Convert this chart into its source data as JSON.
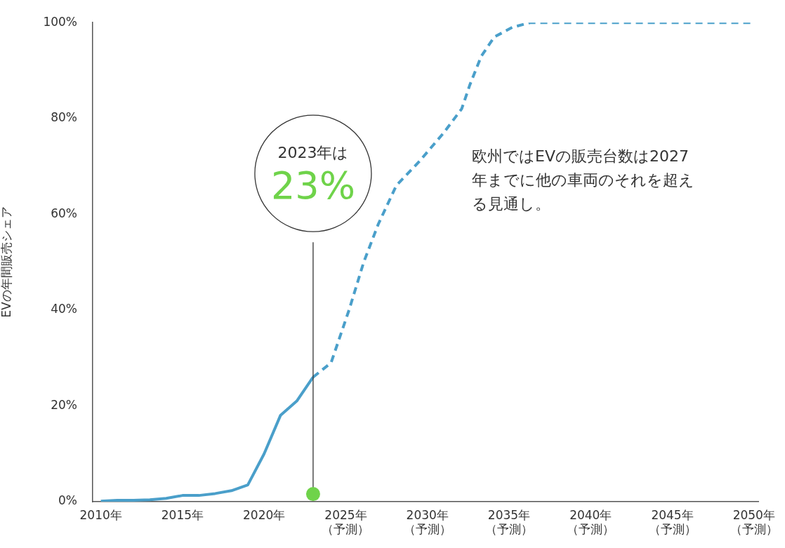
{
  "chart_data": {
    "type": "line",
    "ylabel": "EVの年間販売シェア",
    "xlim": [
      2009.5,
      2050.3
    ],
    "ylim": [
      0,
      100
    ],
    "xticks": [
      {
        "value": 2010,
        "label": "2010年"
      },
      {
        "value": 2015,
        "label": "2015年"
      },
      {
        "value": 2020,
        "label": "2020年"
      },
      {
        "value": 2025,
        "label": "2025年（予測）"
      },
      {
        "value": 2030,
        "label": "2030年（予測）"
      },
      {
        "value": 2035,
        "label": "2035年（予測）"
      },
      {
        "value": 2040,
        "label": "2040年（予測）"
      },
      {
        "value": 2045,
        "label": "2045年（予測）"
      },
      {
        "value": 2050,
        "label": "2050年（予測）"
      }
    ],
    "yticks": [
      {
        "value": 0,
        "label": "0%"
      },
      {
        "value": 20,
        "label": "20%"
      },
      {
        "value": 40,
        "label": "40%"
      },
      {
        "value": 60,
        "label": "60%"
      },
      {
        "value": 80,
        "label": "80%"
      },
      {
        "value": 100,
        "label": "100%"
      }
    ],
    "grid": false,
    "legend": false,
    "marker": "none",
    "series": [
      {
        "color": "#4a9fca",
        "line_style": "solid",
        "x": [
          2010,
          2011,
          2012,
          2013,
          2014,
          2015,
          2016,
          2017,
          2018,
          2019,
          2020,
          2021,
          2022,
          2023
        ],
        "values": [
          0.1,
          0.3,
          0.3,
          0.4,
          0.7,
          1.3,
          1.3,
          1.7,
          2.3,
          3.5,
          10,
          18,
          21,
          26
        ]
      },
      {
        "color": "#4a9fca",
        "line_style": "dashed",
        "x": [
          2023,
          2024.1,
          2025.2,
          2026.1,
          2027,
          2028.1,
          2029.5,
          2031,
          2032.1,
          2032.6,
          2033.3,
          2034.1,
          2035.2,
          2036.3,
          2050
        ],
        "values": [
          26,
          29,
          40,
          50,
          58,
          66,
          71,
          77,
          82,
          87,
          93,
          97,
          99,
          100,
          100
        ]
      }
    ],
    "annotations": [
      {
        "text": "2023年は\n23%",
        "x": 2023,
        "y": 1.6
      },
      "欧州ではEVの販売台数は2027年までに他の車両のそれを超える見通し。"
    ]
  }
}
